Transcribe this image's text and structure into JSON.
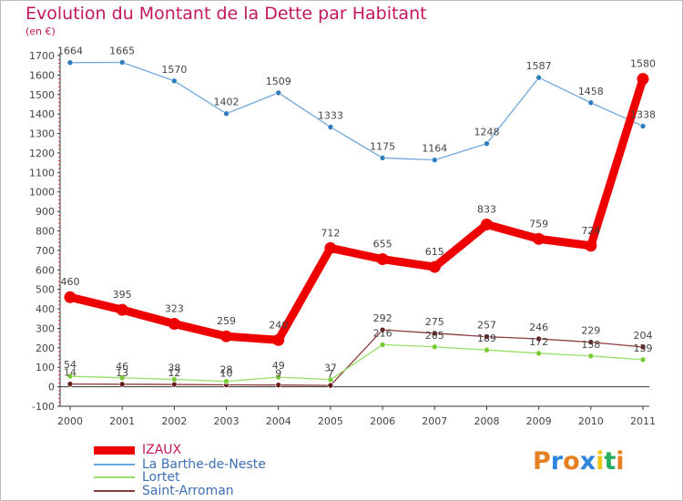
{
  "title": "Evolution du Montant de la Dette par Habitant",
  "subtitle": "(en €)",
  "logo": {
    "text": "Proxiti",
    "letters": [
      "P",
      "r",
      "o",
      "x",
      "i",
      "t",
      "i"
    ],
    "colors": [
      "#e67e22",
      "#2e86de",
      "#e67e22",
      "#2e86de",
      "#f1c40f",
      "#27ae60",
      "#e67e22"
    ]
  },
  "chart_data": {
    "type": "line",
    "title": "Evolution du Montant de la Dette par Habitant",
    "ylabel": "(en €)",
    "xlabel": "",
    "x": [
      "2000",
      "2001",
      "2002",
      "2003",
      "2004",
      "2005",
      "2006",
      "2007",
      "2008",
      "2009",
      "2010",
      "2011"
    ],
    "ylim": [
      -100,
      1700
    ],
    "yticks": [
      -100,
      0,
      100,
      200,
      300,
      400,
      500,
      600,
      700,
      800,
      900,
      1000,
      1100,
      1200,
      1300,
      1400,
      1500,
      1600,
      1700
    ],
    "grid": false,
    "legend": "bottom-left",
    "series": [
      {
        "name": "IZAUX",
        "color": "#ee0000",
        "width": 9,
        "marker": 6.5,
        "values": [
          460,
          395,
          323,
          259,
          240,
          712,
          655,
          615,
          833,
          759,
          724,
          1580
        ],
        "labels": [
          "460",
          "395",
          "323",
          "259",
          "240",
          "712",
          "655",
          "615",
          "833",
          "759",
          "724",
          "1580"
        ]
      },
      {
        "name": "La Barthe-de-Neste",
        "color": "#6fa8dc",
        "marker_color": "#2f7dbf",
        "width": 1.3,
        "marker": 3,
        "values": [
          1664,
          1665,
          1570,
          1402,
          1509,
          1333,
          1175,
          1164,
          1248,
          1587,
          1458,
          1338
        ],
        "labels": [
          "1664",
          "1665",
          "1570",
          "1402",
          "1509",
          "1333",
          "1175",
          "1164",
          "1248",
          "1587",
          "1458",
          "1338"
        ]
      },
      {
        "name": "Lortet",
        "color": "#99dd66",
        "marker_color": "#77cc33",
        "width": 1.3,
        "marker": 3,
        "values": [
          54,
          46,
          38,
          28,
          49,
          37,
          216,
          205,
          189,
          172,
          158,
          139
        ],
        "labels": [
          "54",
          "46",
          "38",
          "28",
          "49",
          "37",
          "216",
          "205",
          "189",
          "172",
          "158",
          "139"
        ]
      },
      {
        "name": "Saint-Arroman",
        "color": "#8b3a3a",
        "marker_color": "#6b1f1f",
        "width": 1.3,
        "marker": 3,
        "values": [
          14,
          13,
          12,
          10,
          9,
          7,
          292,
          275,
          257,
          246,
          229,
          204
        ],
        "labels": [
          "14",
          "13",
          "12",
          "10",
          "9",
          "7",
          "292",
          "275",
          "257",
          "246",
          "229",
          "204"
        ]
      }
    ]
  }
}
